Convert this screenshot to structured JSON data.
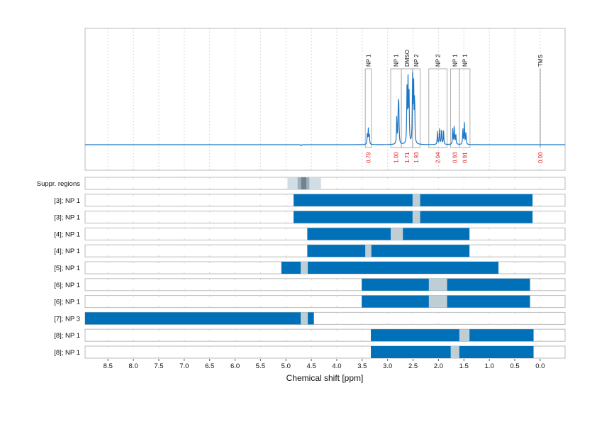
{
  "chart_data": {
    "type": "line",
    "xlabel": "Chemical shift [ppm]",
    "xlim": [
      8.95,
      -0.49
    ],
    "x_reversed": true,
    "xticks": [
      "8.5",
      "8.0",
      "7.5",
      "7.0",
      "6.5",
      "6.0",
      "5.5",
      "5.0",
      "4.5",
      "4.0",
      "3.5",
      "3.0",
      "2.5",
      "2.0",
      "1.5",
      "1.0",
      "0.5",
      "0.0"
    ],
    "grid": true,
    "colors": {
      "spectrum": "#1f77c4",
      "bar": "#0070b8",
      "gap": "#bfcdd4",
      "integral": "#e8211f",
      "box": "#999999"
    },
    "spectrum_peaks": [
      {
        "ppm": 3.4,
        "height": 14
      },
      {
        "ppm": 3.38,
        "height": 22
      },
      {
        "ppm": 3.36,
        "height": 14
      },
      {
        "ppm": 2.82,
        "height": 40
      },
      {
        "ppm": 2.79,
        "height": 55
      },
      {
        "ppm": 2.78,
        "height": 45
      },
      {
        "ppm": 2.62,
        "height": 75
      },
      {
        "ppm": 2.6,
        "height": 90
      },
      {
        "ppm": 2.58,
        "height": 80
      },
      {
        "ppm": 2.51,
        "height": 100
      },
      {
        "ppm": 2.49,
        "height": 98
      },
      {
        "ppm": 2.47,
        "height": 70
      },
      {
        "ppm": 2.02,
        "height": 18
      },
      {
        "ppm": 1.98,
        "height": 24
      },
      {
        "ppm": 1.94,
        "height": 25
      },
      {
        "ppm": 1.9,
        "height": 20
      },
      {
        "ppm": 1.72,
        "height": 22
      },
      {
        "ppm": 1.69,
        "height": 28
      },
      {
        "ppm": 1.66,
        "height": 16
      },
      {
        "ppm": 1.52,
        "height": 24
      },
      {
        "ppm": 1.49,
        "height": 30
      },
      {
        "ppm": 1.46,
        "height": 18
      },
      {
        "ppm": 4.7,
        "height": -2
      }
    ],
    "annotations": [
      {
        "label": "NP 1",
        "from": 3.44,
        "to": 3.32,
        "integral": "0.78"
      },
      {
        "label": "NP 1",
        "from": 2.94,
        "to": 2.73,
        "integral": "1.00"
      },
      {
        "label": "DMSO",
        "from": 2.73,
        "to": 2.51,
        "integral": "1.71"
      },
      {
        "label": "NP 2",
        "from": 2.51,
        "to": 2.36,
        "integral": "1.93"
      },
      {
        "label": "NP 2",
        "from": 2.19,
        "to": 1.83,
        "integral": "2.04"
      },
      {
        "label": "NP 1",
        "from": 1.76,
        "to": 1.59,
        "integral": "0.93"
      },
      {
        "label": "NP 1",
        "from": 1.59,
        "to": 1.38,
        "integral": "0.91"
      },
      {
        "label": "TMS",
        "from": 0.01,
        "to": -0.01,
        "integral": "0.00"
      }
    ],
    "suppressed_regions": {
      "label": "Suppr. regions",
      "outer": [
        4.97,
        4.31
      ],
      "inner": [
        4.77,
        4.54
      ],
      "core": [
        4.7,
        4.6
      ]
    },
    "rows": [
      {
        "label": "[3]; NP 1",
        "range": [
          4.85,
          0.15
        ],
        "gap": [
          2.51,
          2.36
        ]
      },
      {
        "label": "[3]; NP 1",
        "range": [
          4.85,
          0.15
        ],
        "gap": [
          2.51,
          2.36
        ]
      },
      {
        "label": "[4]; NP 1",
        "range": [
          4.58,
          1.39
        ],
        "gap": [
          2.94,
          2.7
        ]
      },
      {
        "label": "[4]; NP 1",
        "range": [
          4.58,
          1.39
        ],
        "gap": [
          3.44,
          3.32
        ]
      },
      {
        "label": "[5]; NP 1",
        "range": [
          5.09,
          0.82
        ],
        "gap": [
          4.71,
          4.57
        ]
      },
      {
        "label": "[6]; NP 1",
        "range": [
          3.51,
          0.2
        ],
        "gap": [
          2.19,
          1.83
        ]
      },
      {
        "label": "[6]; NP 1",
        "range": [
          3.51,
          0.2
        ],
        "gap": [
          2.19,
          1.83
        ]
      },
      {
        "label": "[7]; NP 3",
        "range": [
          8.95,
          4.45
        ],
        "gap": [
          4.71,
          4.57
        ]
      },
      {
        "label": "[8]; NP 1",
        "range": [
          3.33,
          0.13
        ],
        "gap": [
          1.59,
          1.39
        ]
      },
      {
        "label": "[8]; NP 1",
        "range": [
          3.33,
          0.13
        ],
        "gap": [
          1.76,
          1.59
        ]
      }
    ]
  }
}
